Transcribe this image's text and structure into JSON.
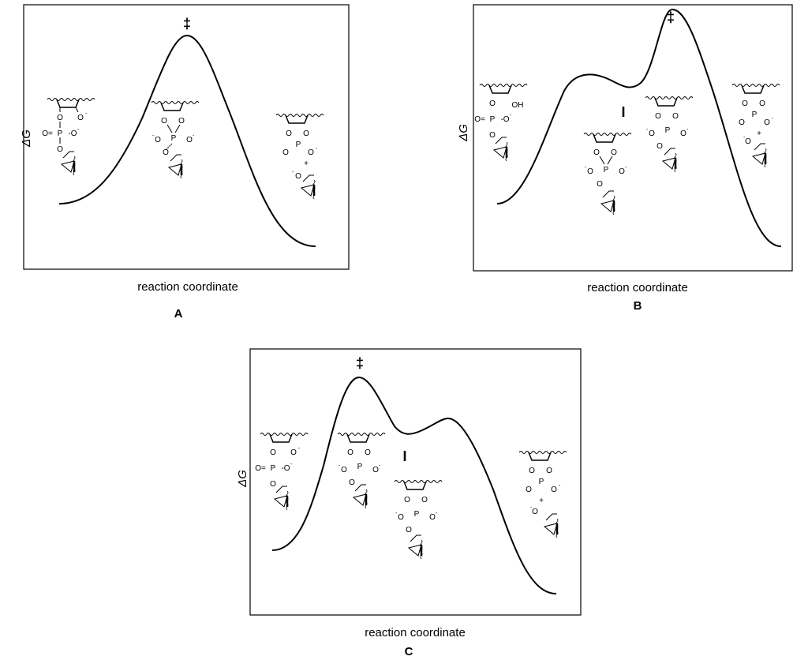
{
  "panels": [
    {
      "id": "A",
      "label": "A",
      "xlabel": "reaction coordinate",
      "ylabel": "ΔG",
      "ts_mark": "‡",
      "int_mark": ""
    },
    {
      "id": "B",
      "label": "B",
      "xlabel": "reaction coordinate",
      "ylabel": "ΔG",
      "ts_mark": "‡",
      "int_mark": "I"
    },
    {
      "id": "C",
      "label": "C",
      "xlabel": "reaction coordinate",
      "ylabel": "ΔG",
      "ts_mark": "‡",
      "int_mark": "I"
    }
  ],
  "atoms": {
    "O": "O",
    "P": "P",
    "OH": "OH",
    "charge": "-",
    "plus": "+"
  }
}
